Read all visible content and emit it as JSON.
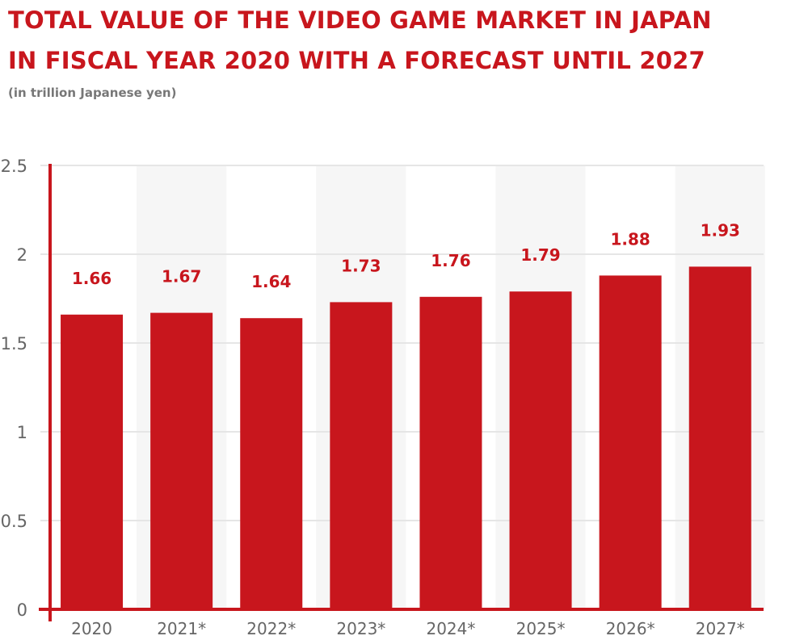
{
  "chart_data": {
    "type": "bar",
    "title": [
      "TOTAL VALUE OF THE VIDEO GAME MARKET IN JAPAN",
      "IN FISCAL YEAR 2020 WITH A FORECAST UNTIL 2027"
    ],
    "subtitle": "(in trillion Japanese yen)",
    "categories": [
      "2020",
      "2021*",
      "2022*",
      "2023*",
      "2024*",
      "2025*",
      "2026*",
      "2027*"
    ],
    "values": [
      1.66,
      1.67,
      1.64,
      1.73,
      1.76,
      1.79,
      1.88,
      1.93
    ],
    "data_labels": [
      "1.66",
      "1.67",
      "1.64",
      "1.73",
      "1.76",
      "1.79",
      "1.88",
      "1.93"
    ],
    "yticks": [
      "0",
      "0.5",
      "1",
      "1.5",
      "2",
      "2.5"
    ],
    "ylim": [
      0,
      2.5
    ],
    "xlabel": "",
    "ylabel": "",
    "grid": true,
    "colors": {
      "bar": "#c8161d",
      "label": "#c8161d",
      "axis": "#c8161d",
      "grid": "#e6e6e6",
      "band": "#f6f6f6"
    }
  }
}
